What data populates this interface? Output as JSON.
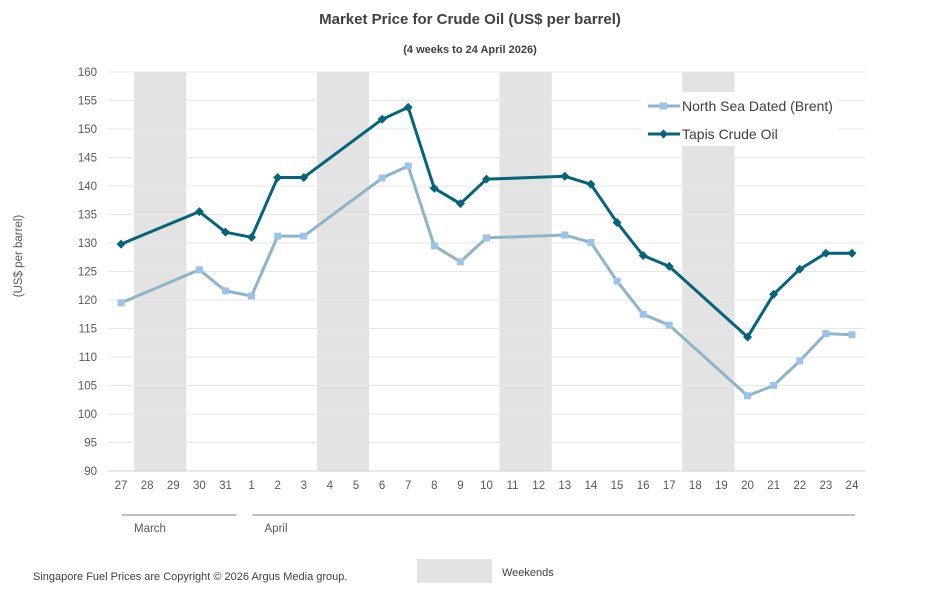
{
  "chart_data": {
    "type": "line",
    "title": "Market Price for Crude Oil (US$ per barrel)",
    "subtitle": "(4 weeks to 24 April  2026)",
    "ylabel": "(US$ per barrel)",
    "xlabel": "",
    "ylim": [
      90,
      160
    ],
    "yticks": [
      90,
      95,
      100,
      105,
      110,
      115,
      120,
      125,
      130,
      135,
      140,
      145,
      150,
      155,
      160
    ],
    "grid": true,
    "categories": [
      "27",
      "28",
      "29",
      "30",
      "31",
      "1",
      "2",
      "3",
      "4",
      "5",
      "6",
      "7",
      "8",
      "9",
      "10",
      "11",
      "12",
      "13",
      "14",
      "15",
      "16",
      "17",
      "18",
      "19",
      "20",
      "21",
      "22",
      "23",
      "24"
    ],
    "month_groups": [
      {
        "label": "March",
        "from": "27",
        "to": "31"
      },
      {
        "label": "April",
        "from": "1",
        "to": "24"
      }
    ],
    "weekend_bands": [
      [
        "28",
        "29"
      ],
      [
        "4",
        "5"
      ],
      [
        "11",
        "12"
      ],
      [
        "18",
        "19"
      ]
    ],
    "weekend_label": "Weekends",
    "legend_position": "top-right",
    "series": [
      {
        "name": "North Sea Dated (Brent)",
        "color": "#8db4c8",
        "marker": "square",
        "marker_color": "#9dc3e6",
        "values": [
          119.5,
          null,
          null,
          125.3,
          121.6,
          120.7,
          131.2,
          131.2,
          null,
          null,
          141.4,
          143.5,
          129.5,
          126.7,
          130.9,
          null,
          null,
          131.4,
          130.1,
          123.3,
          117.5,
          115.6,
          null,
          null,
          103.2,
          105.0,
          109.3,
          114.1,
          113.9
        ]
      },
      {
        "name": "Tapis Crude Oil",
        "color": "#05647a",
        "marker": "diamond",
        "marker_color": "#05647a",
        "values": [
          129.8,
          null,
          null,
          135.5,
          131.9,
          131.0,
          141.5,
          141.5,
          null,
          null,
          151.7,
          153.8,
          139.6,
          136.9,
          141.2,
          null,
          null,
          141.7,
          140.3,
          133.6,
          127.8,
          125.9,
          null,
          null,
          113.5,
          121.0,
          125.4,
          128.2,
          128.2
        ]
      }
    ]
  },
  "footer": {
    "copyright": "Singapore Fuel Prices are Copyright © 2026 Argus Media group."
  },
  "colors": {
    "weekend_fill": "#e3e3e3",
    "grid": "#e7e7e7"
  }
}
